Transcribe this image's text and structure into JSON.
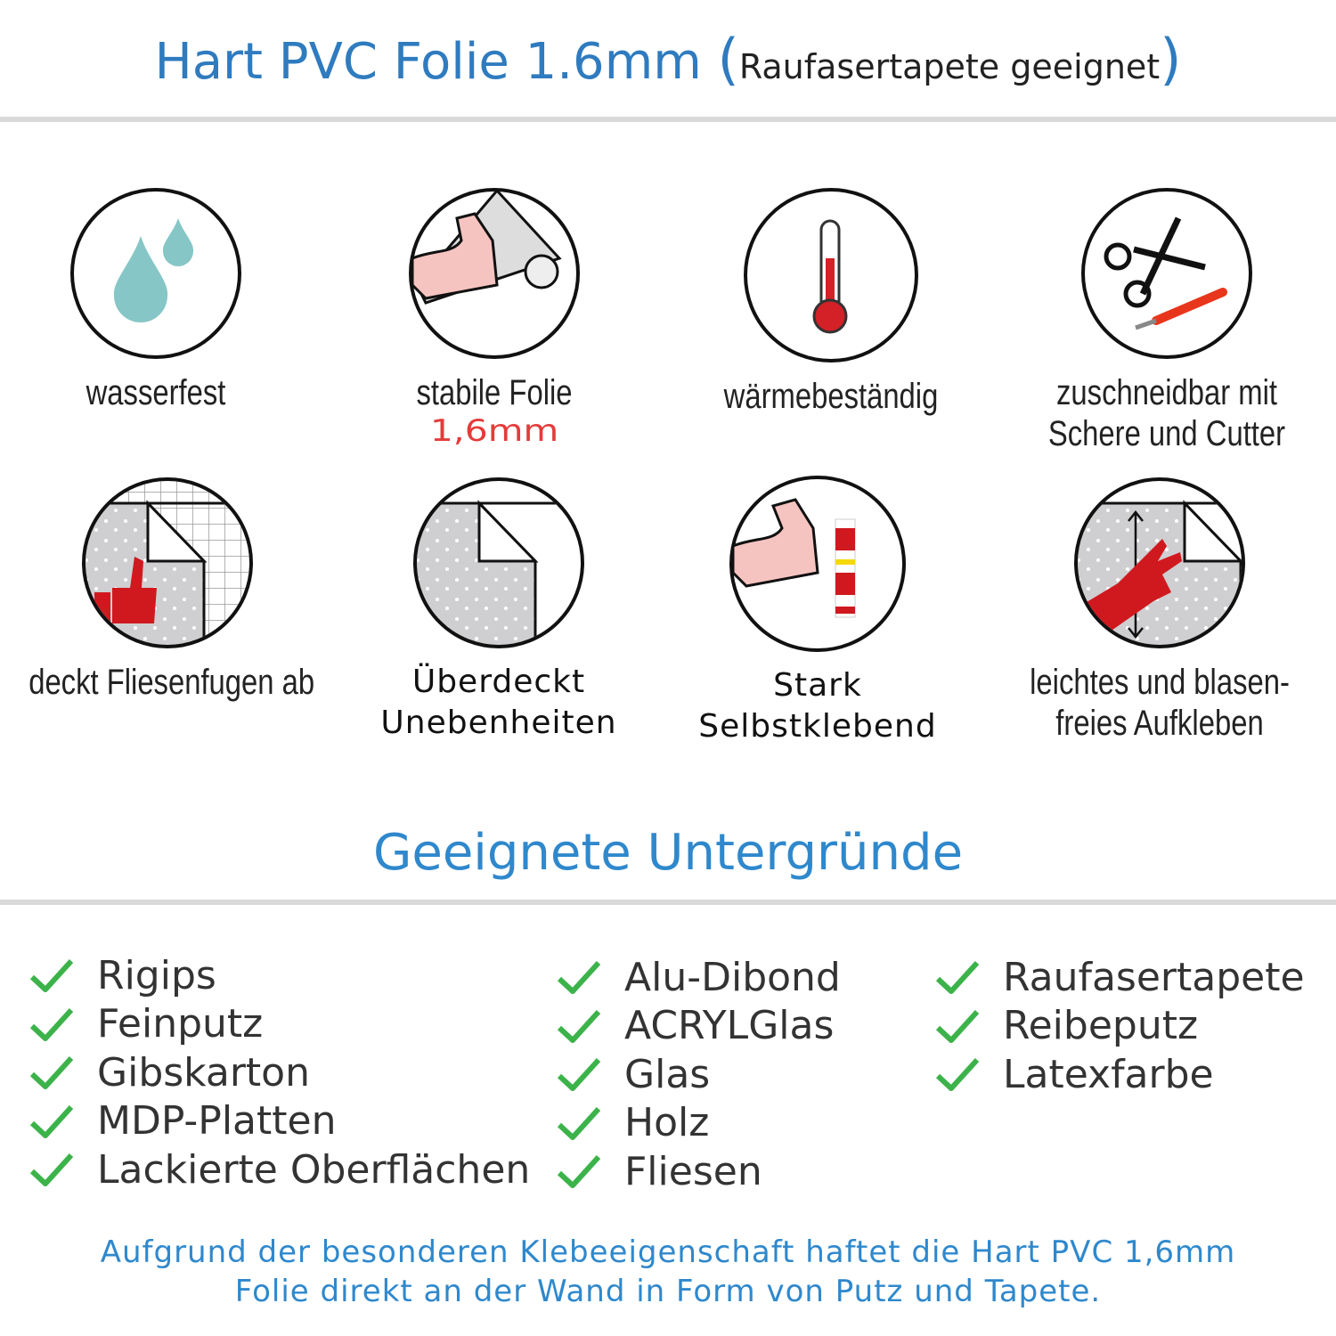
{
  "header": {
    "title": "Hart PVC Folie 1.6mm",
    "subtitle": "Raufasertapete geeignet"
  },
  "features": [
    {
      "icon": "water-drops-icon",
      "label": "wasserfest"
    },
    {
      "icon": "strong-arm-film-icon",
      "label": "stabile Folie",
      "highlight": "1,6mm"
    },
    {
      "icon": "thermometer-icon",
      "label": "wärmebeständig"
    },
    {
      "icon": "scissors-cutter-icon",
      "label": "zuschneidbar mit",
      "label2": "Schere und Cutter"
    },
    {
      "icon": "thumbs-up-tiles-icon",
      "label": "deckt Fliesenfugen ab"
    },
    {
      "icon": "peeling-film-icon",
      "label": "Überdeckt",
      "label2": "Unebenheiten"
    },
    {
      "icon": "arm-glue-icon",
      "label": "Stark",
      "label2": "Selbstklebend"
    },
    {
      "icon": "hand-smoothing-icon",
      "label": "leichtes und blasen-",
      "label2": "freies Aufkleben"
    }
  ],
  "surfaces": {
    "title": "Geeignete Untergründe",
    "columns": [
      [
        "Rigips",
        "Feinputz",
        "Gibskarton",
        "MDP-Platten",
        "Lackierte Oberflächen"
      ],
      [
        "Alu-Dibond",
        "ACRYLGlas",
        "Glas",
        "Holz",
        "Fliesen"
      ],
      [
        "Raufasertapete",
        "Reibeputz",
        "Latexfarbe"
      ]
    ],
    "check_color": "#3cb34a"
  },
  "footer": {
    "line1": "Aufgrund der besonderen Klebeeigenschaft haftet die Hart PVC 1,6mm",
    "line2": "Folie direkt an der Wand in Form von Putz und Tapete."
  },
  "colors": {
    "accent": "#2f7bbf",
    "highlight": "#e53b3b"
  }
}
